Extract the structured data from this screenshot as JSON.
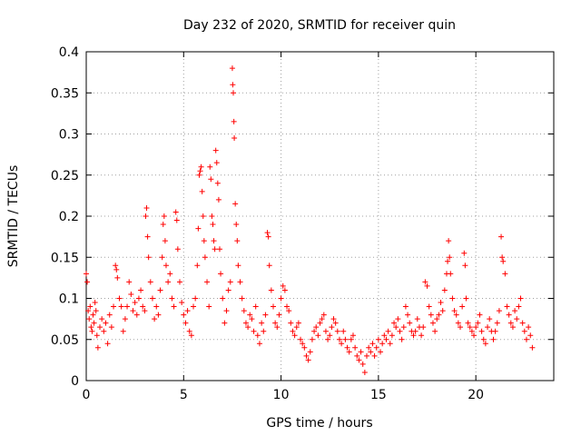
{
  "chart_data": {
    "type": "scatter",
    "title": "Day 232 of 2020, SRMTID for receiver quin",
    "xlabel": "GPS time / hours",
    "ylabel": "SRMTID / TECUs",
    "xlim": [
      0,
      24
    ],
    "ylim": [
      0,
      0.4
    ],
    "xticks": [
      0,
      5,
      10,
      15,
      20
    ],
    "yticks": [
      0,
      0.05,
      0.1,
      0.15,
      0.2,
      0.25,
      0.3,
      0.35,
      0.4
    ],
    "grid": true,
    "marker": "+",
    "color": "#ff0000",
    "series": [
      {
        "name": "SRMTID",
        "points": [
          [
            0.0,
            0.13
          ],
          [
            0.05,
            0.12
          ],
          [
            0.1,
            0.085
          ],
          [
            0.15,
            0.075
          ],
          [
            0.2,
            0.09
          ],
          [
            0.25,
            0.065
          ],
          [
            0.3,
            0.06
          ],
          [
            0.35,
            0.08
          ],
          [
            0.4,
            0.07
          ],
          [
            0.45,
            0.095
          ],
          [
            0.5,
            0.085
          ],
          [
            0.55,
            0.055
          ],
          [
            0.6,
            0.04
          ],
          [
            0.7,
            0.065
          ],
          [
            0.8,
            0.075
          ],
          [
            0.9,
            0.06
          ],
          [
            1.0,
            0.07
          ],
          [
            1.1,
            0.045
          ],
          [
            1.2,
            0.08
          ],
          [
            1.3,
            0.065
          ],
          [
            1.4,
            0.09
          ],
          [
            1.5,
            0.14
          ],
          [
            1.55,
            0.135
          ],
          [
            1.6,
            0.125
          ],
          [
            1.7,
            0.1
          ],
          [
            1.8,
            0.09
          ],
          [
            1.9,
            0.06
          ],
          [
            2.0,
            0.075
          ],
          [
            2.1,
            0.09
          ],
          [
            2.2,
            0.12
          ],
          [
            2.3,
            0.105
          ],
          [
            2.4,
            0.085
          ],
          [
            2.5,
            0.095
          ],
          [
            2.6,
            0.08
          ],
          [
            2.7,
            0.1
          ],
          [
            2.8,
            0.11
          ],
          [
            2.9,
            0.09
          ],
          [
            3.0,
            0.085
          ],
          [
            3.05,
            0.2
          ],
          [
            3.1,
            0.21
          ],
          [
            3.15,
            0.175
          ],
          [
            3.2,
            0.15
          ],
          [
            3.3,
            0.12
          ],
          [
            3.4,
            0.1
          ],
          [
            3.5,
            0.075
          ],
          [
            3.6,
            0.09
          ],
          [
            3.7,
            0.08
          ],
          [
            3.8,
            0.11
          ],
          [
            3.9,
            0.15
          ],
          [
            3.95,
            0.19
          ],
          [
            4.0,
            0.2
          ],
          [
            4.05,
            0.17
          ],
          [
            4.1,
            0.14
          ],
          [
            4.2,
            0.12
          ],
          [
            4.3,
            0.13
          ],
          [
            4.4,
            0.1
          ],
          [
            4.5,
            0.09
          ],
          [
            4.6,
            0.205
          ],
          [
            4.65,
            0.195
          ],
          [
            4.7,
            0.16
          ],
          [
            4.8,
            0.12
          ],
          [
            4.9,
            0.095
          ],
          [
            5.0,
            0.08
          ],
          [
            5.1,
            0.07
          ],
          [
            5.2,
            0.085
          ],
          [
            5.3,
            0.06
          ],
          [
            5.4,
            0.055
          ],
          [
            5.5,
            0.09
          ],
          [
            5.6,
            0.1
          ],
          [
            5.7,
            0.14
          ],
          [
            5.75,
            0.185
          ],
          [
            5.8,
            0.25
          ],
          [
            5.85,
            0.255
          ],
          [
            5.9,
            0.26
          ],
          [
            5.95,
            0.23
          ],
          [
            6.0,
            0.2
          ],
          [
            6.05,
            0.17
          ],
          [
            6.1,
            0.15
          ],
          [
            6.2,
            0.12
          ],
          [
            6.3,
            0.09
          ],
          [
            6.35,
            0.26
          ],
          [
            6.4,
            0.245
          ],
          [
            6.45,
            0.2
          ],
          [
            6.5,
            0.19
          ],
          [
            6.55,
            0.17
          ],
          [
            6.6,
            0.16
          ],
          [
            6.65,
            0.28
          ],
          [
            6.7,
            0.265
          ],
          [
            6.75,
            0.24
          ],
          [
            6.8,
            0.22
          ],
          [
            6.85,
            0.16
          ],
          [
            6.9,
            0.13
          ],
          [
            7.0,
            0.1
          ],
          [
            7.1,
            0.07
          ],
          [
            7.2,
            0.085
          ],
          [
            7.3,
            0.11
          ],
          [
            7.4,
            0.12
          ],
          [
            7.5,
            0.38
          ],
          [
            7.52,
            0.36
          ],
          [
            7.55,
            0.35
          ],
          [
            7.58,
            0.315
          ],
          [
            7.6,
            0.295
          ],
          [
            7.65,
            0.215
          ],
          [
            7.7,
            0.19
          ],
          [
            7.75,
            0.17
          ],
          [
            7.8,
            0.14
          ],
          [
            7.9,
            0.12
          ],
          [
            8.0,
            0.1
          ],
          [
            8.1,
            0.085
          ],
          [
            8.2,
            0.07
          ],
          [
            8.3,
            0.065
          ],
          [
            8.4,
            0.08
          ],
          [
            8.5,
            0.075
          ],
          [
            8.6,
            0.06
          ],
          [
            8.7,
            0.09
          ],
          [
            8.8,
            0.055
          ],
          [
            8.9,
            0.045
          ],
          [
            9.0,
            0.07
          ],
          [
            9.1,
            0.06
          ],
          [
            9.2,
            0.08
          ],
          [
            9.3,
            0.18
          ],
          [
            9.35,
            0.175
          ],
          [
            9.4,
            0.14
          ],
          [
            9.5,
            0.11
          ],
          [
            9.6,
            0.09
          ],
          [
            9.7,
            0.07
          ],
          [
            9.8,
            0.065
          ],
          [
            9.9,
            0.08
          ],
          [
            10.0,
            0.1
          ],
          [
            10.1,
            0.115
          ],
          [
            10.2,
            0.11
          ],
          [
            10.3,
            0.09
          ],
          [
            10.4,
            0.085
          ],
          [
            10.5,
            0.07
          ],
          [
            10.6,
            0.06
          ],
          [
            10.7,
            0.055
          ],
          [
            10.8,
            0.065
          ],
          [
            10.9,
            0.07
          ],
          [
            11.0,
            0.05
          ],
          [
            11.1,
            0.045
          ],
          [
            11.2,
            0.04
          ],
          [
            11.3,
            0.03
          ],
          [
            11.4,
            0.025
          ],
          [
            11.5,
            0.035
          ],
          [
            11.6,
            0.05
          ],
          [
            11.7,
            0.06
          ],
          [
            11.8,
            0.065
          ],
          [
            11.9,
            0.055
          ],
          [
            12.0,
            0.07
          ],
          [
            12.1,
            0.075
          ],
          [
            12.2,
            0.08
          ],
          [
            12.3,
            0.06
          ],
          [
            12.4,
            0.05
          ],
          [
            12.5,
            0.055
          ],
          [
            12.6,
            0.065
          ],
          [
            12.7,
            0.075
          ],
          [
            12.8,
            0.07
          ],
          [
            12.9,
            0.06
          ],
          [
            13.0,
            0.05
          ],
          [
            13.1,
            0.045
          ],
          [
            13.2,
            0.06
          ],
          [
            13.3,
            0.05
          ],
          [
            13.4,
            0.04
          ],
          [
            13.5,
            0.035
          ],
          [
            13.6,
            0.05
          ],
          [
            13.7,
            0.055
          ],
          [
            13.8,
            0.04
          ],
          [
            13.9,
            0.03
          ],
          [
            14.0,
            0.025
          ],
          [
            14.1,
            0.035
          ],
          [
            14.2,
            0.02
          ],
          [
            14.3,
            0.01
          ],
          [
            14.4,
            0.03
          ],
          [
            14.5,
            0.04
          ],
          [
            14.6,
            0.035
          ],
          [
            14.7,
            0.045
          ],
          [
            14.8,
            0.03
          ],
          [
            14.9,
            0.04
          ],
          [
            15.0,
            0.05
          ],
          [
            15.1,
            0.035
          ],
          [
            15.2,
            0.045
          ],
          [
            15.3,
            0.055
          ],
          [
            15.4,
            0.05
          ],
          [
            15.5,
            0.06
          ],
          [
            15.6,
            0.045
          ],
          [
            15.7,
            0.055
          ],
          [
            15.8,
            0.07
          ],
          [
            15.9,
            0.065
          ],
          [
            16.0,
            0.075
          ],
          [
            16.1,
            0.06
          ],
          [
            16.2,
            0.05
          ],
          [
            16.3,
            0.065
          ],
          [
            16.4,
            0.09
          ],
          [
            16.5,
            0.08
          ],
          [
            16.6,
            0.07
          ],
          [
            16.7,
            0.06
          ],
          [
            16.8,
            0.055
          ],
          [
            16.9,
            0.06
          ],
          [
            17.0,
            0.075
          ],
          [
            17.1,
            0.065
          ],
          [
            17.2,
            0.055
          ],
          [
            17.3,
            0.065
          ],
          [
            17.4,
            0.12
          ],
          [
            17.5,
            0.115
          ],
          [
            17.6,
            0.09
          ],
          [
            17.7,
            0.08
          ],
          [
            17.8,
            0.07
          ],
          [
            17.9,
            0.06
          ],
          [
            18.0,
            0.075
          ],
          [
            18.1,
            0.08
          ],
          [
            18.2,
            0.095
          ],
          [
            18.3,
            0.085
          ],
          [
            18.4,
            0.11
          ],
          [
            18.5,
            0.13
          ],
          [
            18.55,
            0.145
          ],
          [
            18.6,
            0.17
          ],
          [
            18.65,
            0.15
          ],
          [
            18.7,
            0.13
          ],
          [
            18.8,
            0.1
          ],
          [
            18.9,
            0.085
          ],
          [
            19.0,
            0.08
          ],
          [
            19.1,
            0.07
          ],
          [
            19.2,
            0.065
          ],
          [
            19.3,
            0.09
          ],
          [
            19.4,
            0.155
          ],
          [
            19.45,
            0.14
          ],
          [
            19.5,
            0.1
          ],
          [
            19.6,
            0.07
          ],
          [
            19.7,
            0.065
          ],
          [
            19.8,
            0.06
          ],
          [
            19.9,
            0.055
          ],
          [
            20.0,
            0.065
          ],
          [
            20.1,
            0.07
          ],
          [
            20.2,
            0.08
          ],
          [
            20.3,
            0.06
          ],
          [
            20.4,
            0.05
          ],
          [
            20.5,
            0.045
          ],
          [
            20.6,
            0.065
          ],
          [
            20.7,
            0.075
          ],
          [
            20.8,
            0.06
          ],
          [
            20.9,
            0.05
          ],
          [
            21.0,
            0.06
          ],
          [
            21.1,
            0.07
          ],
          [
            21.2,
            0.085
          ],
          [
            21.3,
            0.175
          ],
          [
            21.35,
            0.15
          ],
          [
            21.4,
            0.145
          ],
          [
            21.5,
            0.13
          ],
          [
            21.6,
            0.09
          ],
          [
            21.7,
            0.08
          ],
          [
            21.8,
            0.07
          ],
          [
            21.9,
            0.065
          ],
          [
            22.0,
            0.085
          ],
          [
            22.1,
            0.075
          ],
          [
            22.2,
            0.09
          ],
          [
            22.3,
            0.1
          ],
          [
            22.4,
            0.07
          ],
          [
            22.5,
            0.06
          ],
          [
            22.6,
            0.05
          ],
          [
            22.7,
            0.065
          ],
          [
            22.8,
            0.055
          ],
          [
            22.9,
            0.04
          ]
        ]
      }
    ]
  }
}
